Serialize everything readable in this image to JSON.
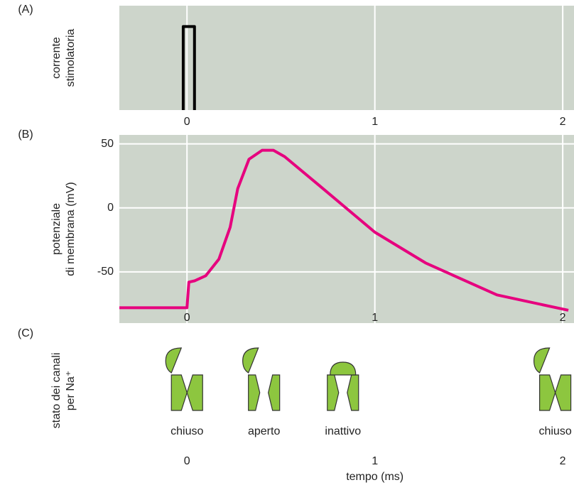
{
  "chart_data": [
    {
      "type": "line",
      "label": "(A)",
      "ylabel": [
        "corrente",
        "stimolatoria"
      ],
      "xlim": [
        -0.36,
        2.06
      ],
      "ylim": [
        0,
        1.25
      ],
      "xticks": [
        0,
        1,
        2
      ],
      "grid": true,
      "background": "#cdd5cb",
      "series": [
        {
          "color": "#000000",
          "x": [
            -0.02,
            -0.02,
            0.04,
            0.04
          ],
          "values": [
            0,
            1,
            1,
            0
          ]
        }
      ]
    },
    {
      "type": "line",
      "label": "(B)",
      "ylabel": [
        "potenziale",
        "di membrana (mV)"
      ],
      "xlim": [
        -0.36,
        2.06
      ],
      "ylim": [
        -90,
        57
      ],
      "xticks": [
        0,
        1,
        2
      ],
      "yticks": [
        50,
        0,
        -50
      ],
      "grid": true,
      "background": "#cdd5cb",
      "series": [
        {
          "color": "#e6007e",
          "x": [
            -0.36,
            -0.01,
            0,
            0.01,
            0.04,
            0.1,
            0.17,
            0.23,
            0.27,
            0.33,
            0.4,
            0.46,
            0.52,
            0.7,
            1,
            1.27,
            1.65,
            2.03
          ],
          "values": [
            -78,
            -78,
            -78,
            -58,
            -57,
            -53,
            -40,
            -15,
            15,
            38,
            45,
            45,
            40,
            18,
            -19,
            -43,
            -68,
            -80
          ]
        }
      ]
    },
    {
      "type": "states",
      "label": "(C)",
      "ylabel": [
        "stato dei canali",
        "per Na⁺"
      ],
      "xlim": [
        -0.36,
        2.06
      ],
      "xticks": [
        0,
        1,
        2
      ],
      "xlabel": "tempo (ms)",
      "x": [
        -0.17,
        0.24,
        0.66,
        1.79
      ],
      "categories": [
        "chiuso",
        "aperto",
        "inattivo",
        "chiuso"
      ],
      "color": "#8dc63f"
    }
  ]
}
